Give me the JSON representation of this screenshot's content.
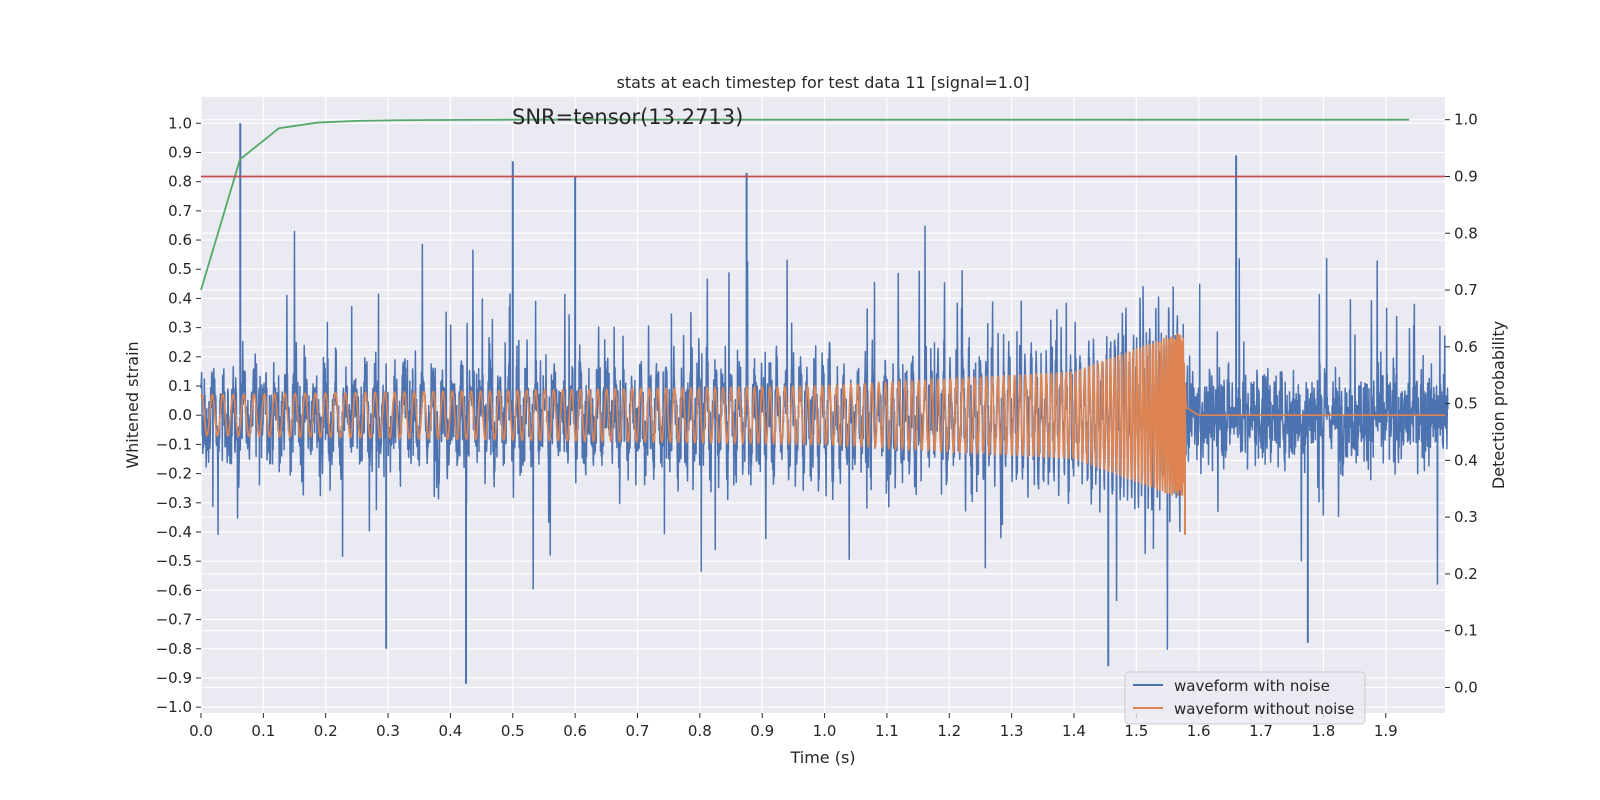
{
  "chart_data": {
    "type": "line",
    "title": "stats at each timestep for test data 11 [signal=1.0]",
    "xlabel": "Time (s)",
    "ylabel_left": "Whitened strain",
    "ylabel_right": "Detection probability",
    "annotation": "SNR=tensor(13.2713)",
    "xlim": [
      0.0,
      1.995
    ],
    "ylim_left": [
      -1.02,
      1.09
    ],
    "ylim_right": [
      -0.045,
      1.04
    ],
    "xticks": [
      "0.0",
      "0.1",
      "0.2",
      "0.3",
      "0.4",
      "0.5",
      "0.6",
      "0.7",
      "0.8",
      "0.9",
      "1.0",
      "1.1",
      "1.2",
      "1.3",
      "1.4",
      "1.5",
      "1.6",
      "1.7",
      "1.8",
      "1.9"
    ],
    "yticks_left": [
      "−1.0",
      "−0.9",
      "−0.8",
      "−0.7",
      "−0.6",
      "−0.5",
      "−0.4",
      "−0.3",
      "−0.2",
      "−0.1",
      "0.0",
      "0.1",
      "0.2",
      "0.3",
      "0.4",
      "0.5",
      "0.6",
      "0.7",
      "0.8",
      "0.9",
      "1.0"
    ],
    "yticks_right": [
      "0.0",
      "0.1",
      "0.2",
      "0.3",
      "0.4",
      "0.5",
      "0.6",
      "0.7",
      "0.8",
      "0.9",
      "1.0"
    ],
    "legend_position": "lower-right",
    "grid": true,
    "series": [
      {
        "name": "waveform with noise",
        "axis": "left",
        "color": "#4c72b0",
        "samples": 4096,
        "x_range": [
          0.0,
          2.0
        ],
        "y_range": [
          -0.92,
          1.0
        ],
        "peaks": [
          {
            "x": 0.063,
            "y": 1.0
          },
          {
            "x": 0.5,
            "y": 0.87
          },
          {
            "x": 0.6,
            "y": 0.82
          },
          {
            "x": 0.875,
            "y": 0.83
          },
          {
            "x": 1.66,
            "y": 0.89
          },
          {
            "x": 0.425,
            "y": -0.92
          },
          {
            "x": 1.455,
            "y": -0.86
          },
          {
            "x": 0.297,
            "y": -0.8
          },
          {
            "x": 1.775,
            "y": -0.78
          }
        ]
      },
      {
        "name": "waveform without noise",
        "axis": "left",
        "color": "#dd8452",
        "description_points": [
          {
            "x": 0.0,
            "amplitude": 0.07
          },
          {
            "x": 1.0,
            "amplitude": 0.1
          },
          {
            "x": 1.4,
            "amplitude": 0.15
          },
          {
            "x": 1.575,
            "amplitude": 0.29
          },
          {
            "x": 1.58,
            "amplitude": 0.03
          },
          {
            "x": 1.6,
            "amplitude": 0.0
          }
        ],
        "min": -0.41,
        "max": 0.29
      },
      {
        "axis": "right",
        "color": "#55a868",
        "x": [
          0.0,
          0.0625,
          0.125,
          0.1875,
          0.25,
          0.3125,
          0.375,
          0.5,
          0.75,
          1.0,
          1.25,
          1.5,
          1.75,
          1.9375
        ],
        "y": [
          0.7,
          0.93,
          0.985,
          0.995,
          0.998,
          0.999,
          0.9995,
          1.0,
          1.0,
          1.0,
          1.0,
          1.0,
          1.0,
          1.0
        ]
      },
      {
        "axis": "right",
        "color": "#c44e52",
        "type": "hline",
        "y": 0.9
      }
    ]
  }
}
